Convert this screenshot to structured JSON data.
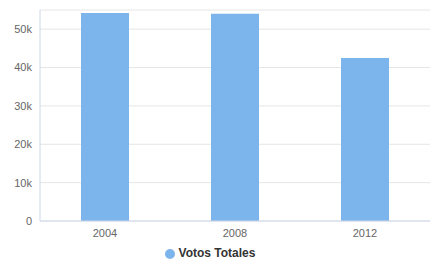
{
  "chart_data": {
    "type": "bar",
    "categories": [
      "2004",
      "2008",
      "2012"
    ],
    "series": [
      {
        "name": "Votos Totales",
        "color": "#7cb5ec",
        "values": [
          54200,
          54000,
          42500
        ]
      }
    ],
    "ylim": [
      0,
      55000
    ],
    "yticks": [
      0,
      {
        "value": 10000,
        "label": "10k"
      },
      {
        "value": 20000,
        "label": "20k"
      },
      {
        "value": 30000,
        "label": "30k"
      },
      {
        "value": 40000,
        "label": "40k"
      },
      {
        "value": 50000,
        "label": "50k"
      }
    ],
    "grid": true,
    "legend": "bottom"
  }
}
